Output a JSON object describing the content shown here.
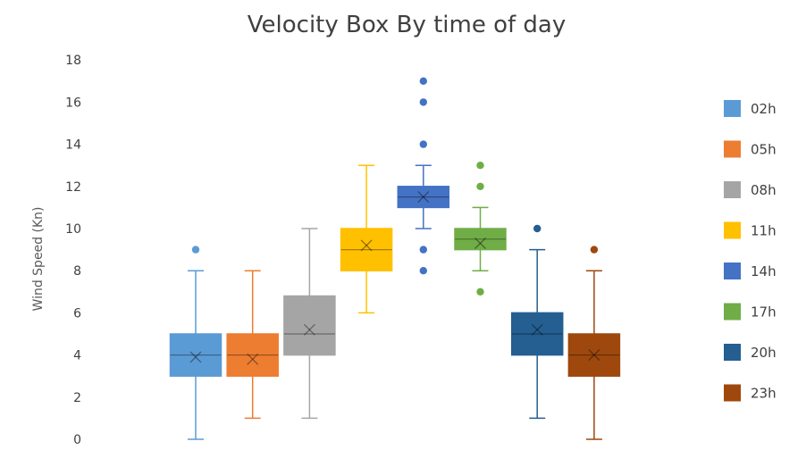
{
  "chart_data": {
    "type": "box",
    "title": "Velocity Box By time of day",
    "xlabel": "",
    "ylabel": "Wind Speed (Kn)",
    "ylim": [
      0,
      18
    ],
    "yticks": [
      0,
      2,
      4,
      6,
      8,
      10,
      12,
      14,
      16,
      18
    ],
    "legend_position": "right",
    "grid": false,
    "series": [
      {
        "name": "02h",
        "color": "#5b9bd5",
        "min": 0,
        "q1": 3,
        "median": 4,
        "q3": 5,
        "max": 8,
        "mean": 3.9,
        "outliers": [
          9
        ]
      },
      {
        "name": "05h",
        "color": "#ed7d31",
        "min": 1,
        "q1": 3,
        "median": 4,
        "q3": 5,
        "max": 8,
        "mean": 3.8,
        "outliers": []
      },
      {
        "name": "08h",
        "color": "#a5a5a5",
        "min": 1,
        "q1": 4,
        "median": 5,
        "q3": 6.8,
        "max": 10,
        "mean": 5.2,
        "outliers": []
      },
      {
        "name": "11h",
        "color": "#ffc000",
        "min": 6,
        "q1": 8,
        "median": 9,
        "q3": 10,
        "max": 13,
        "mean": 9.2,
        "outliers": []
      },
      {
        "name": "14h",
        "color": "#4472c4",
        "min": 10,
        "q1": 11,
        "median": 11.5,
        "q3": 12,
        "max": 13,
        "mean": 11.5,
        "outliers": [
          8,
          9,
          14,
          16,
          17
        ]
      },
      {
        "name": "17h",
        "color": "#70ad47",
        "min": 8,
        "q1": 9,
        "median": 9.5,
        "q3": 10,
        "max": 11,
        "mean": 9.3,
        "outliers": [
          7,
          12,
          13
        ]
      },
      {
        "name": "20h",
        "color": "#255e91",
        "min": 1,
        "q1": 4,
        "median": 5,
        "q3": 6,
        "max": 9,
        "mean": 5.2,
        "outliers": [
          10
        ]
      },
      {
        "name": "23h",
        "color": "#9e480e",
        "min": 0,
        "q1": 3,
        "median": 4,
        "q3": 5,
        "max": 8,
        "mean": 4,
        "outliers": [
          9
        ]
      }
    ]
  }
}
